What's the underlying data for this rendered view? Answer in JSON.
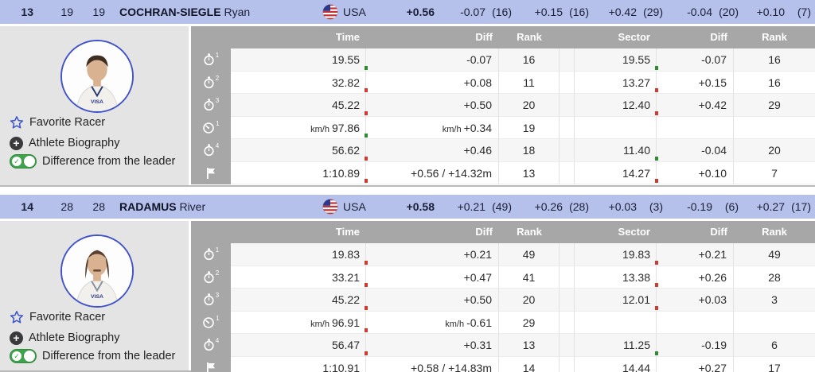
{
  "colors": {
    "red": "#cd3c30",
    "green": "#2e8b33",
    "header_bg": "#b5c0eb",
    "table_head_bg": "#a7a7a7",
    "sidebar_bg": "#e4e4e4",
    "row_odd": "#f6f6f6",
    "accent_blue": "#3c55c8",
    "toggle_green": "#3fa24c"
  },
  "sidebar_labels": {
    "favorite": "Favorite Racer",
    "biography": "Athlete Biography",
    "difference_toggle": "Difference from the leader"
  },
  "table_headers": {
    "time": "Time",
    "diff": "Diff",
    "rank": "Rank",
    "sector": "Sector",
    "diff2": "Diff",
    "rank2": "Rank"
  },
  "racers": [
    {
      "rank": "13",
      "bib": "19",
      "start": "19",
      "last_name": "COCHRAN-SIEGLE",
      "first_name": "Ryan",
      "country": "USA",
      "total_diff": "+0.56",
      "summary": [
        {
          "diff": "-0.07",
          "rank": "(16)"
        },
        {
          "diff": "+0.15",
          "rank": "(16)"
        },
        {
          "diff": "+0.42",
          "rank": "(29)"
        },
        {
          "diff": "-0.04",
          "rank": "(20)"
        },
        {
          "diff": "+0.10",
          "rank": "(7)"
        }
      ],
      "rows": [
        {
          "icon": "stopwatch-1",
          "icon_sub": "1",
          "time": "19.55",
          "diff": "-0.07",
          "diff_color": "green",
          "rank": "16",
          "sector": "19.55",
          "sector_diff": "-0.07",
          "sector_diff_color": "green",
          "sector_rank": "16"
        },
        {
          "icon": "stopwatch-2",
          "icon_sub": "2",
          "time": "32.82",
          "diff": "+0.08",
          "diff_color": "red",
          "rank": "11",
          "sector": "13.27",
          "sector_diff": "+0.15",
          "sector_diff_color": "red",
          "sector_rank": "16"
        },
        {
          "icon": "stopwatch-3",
          "icon_sub": "3",
          "time": "45.22",
          "diff": "+0.50",
          "diff_color": "red",
          "rank": "20",
          "sector": "12.40",
          "sector_diff": "+0.42",
          "sector_diff_color": "red",
          "sector_rank": "29"
        },
        {
          "icon": "speedometer-1",
          "icon_sub": "1",
          "time_prefix": "km/h",
          "time": "97.86",
          "diff_prefix": "km/h",
          "diff": "+0.34",
          "diff_color": "green",
          "rank": "19",
          "sector": "",
          "sector_diff": "",
          "sector_diff_color": "",
          "sector_rank": ""
        },
        {
          "icon": "stopwatch-4",
          "icon_sub": "4",
          "time": "56.62",
          "diff": "+0.46",
          "diff_color": "red",
          "rank": "18",
          "sector": "11.40",
          "sector_diff": "-0.04",
          "sector_diff_color": "green",
          "sector_rank": "20"
        },
        {
          "icon": "finish-flag",
          "icon_sub": "",
          "time": "1:10.89",
          "diff": "+0.56 / +14.32m",
          "diff_color": "red",
          "rank": "13",
          "sector": "14.27",
          "sector_diff": "+0.10",
          "sector_diff_color": "red",
          "sector_rank": "7"
        }
      ]
    },
    {
      "rank": "14",
      "bib": "28",
      "start": "28",
      "last_name": "RADAMUS",
      "first_name": "River",
      "country": "USA",
      "total_diff": "+0.58",
      "summary": [
        {
          "diff": "+0.21",
          "rank": "(49)"
        },
        {
          "diff": "+0.26",
          "rank": "(28)"
        },
        {
          "diff": "+0.03",
          "rank": "(3)"
        },
        {
          "diff": "-0.19",
          "rank": "(6)"
        },
        {
          "diff": "+0.27",
          "rank": "(17)"
        }
      ],
      "rows": [
        {
          "icon": "stopwatch-1",
          "icon_sub": "1",
          "time": "19.83",
          "diff": "+0.21",
          "diff_color": "red",
          "rank": "49",
          "sector": "19.83",
          "sector_diff": "+0.21",
          "sector_diff_color": "red",
          "sector_rank": "49"
        },
        {
          "icon": "stopwatch-2",
          "icon_sub": "2",
          "time": "33.21",
          "diff": "+0.47",
          "diff_color": "red",
          "rank": "41",
          "sector": "13.38",
          "sector_diff": "+0.26",
          "sector_diff_color": "red",
          "sector_rank": "28"
        },
        {
          "icon": "stopwatch-3",
          "icon_sub": "3",
          "time": "45.22",
          "diff": "+0.50",
          "diff_color": "red",
          "rank": "20",
          "sector": "12.01",
          "sector_diff": "+0.03",
          "sector_diff_color": "red",
          "sector_rank": "3"
        },
        {
          "icon": "speedometer-1",
          "icon_sub": "1",
          "time_prefix": "km/h",
          "time": "96.91",
          "diff_prefix": "km/h",
          "diff": "-0.61",
          "diff_color": "red",
          "rank": "29",
          "sector": "",
          "sector_diff": "",
          "sector_diff_color": "",
          "sector_rank": ""
        },
        {
          "icon": "stopwatch-4",
          "icon_sub": "4",
          "time": "56.47",
          "diff": "+0.31",
          "diff_color": "red",
          "rank": "13",
          "sector": "11.25",
          "sector_diff": "-0.19",
          "sector_diff_color": "green",
          "sector_rank": "6"
        },
        {
          "icon": "finish-flag",
          "icon_sub": "",
          "time": "1:10.91",
          "diff": "+0.58 / +14.83m",
          "diff_color": "red",
          "rank": "14",
          "sector": "14.44",
          "sector_diff": "+0.27",
          "sector_diff_color": "red",
          "sector_rank": "17"
        }
      ]
    }
  ]
}
